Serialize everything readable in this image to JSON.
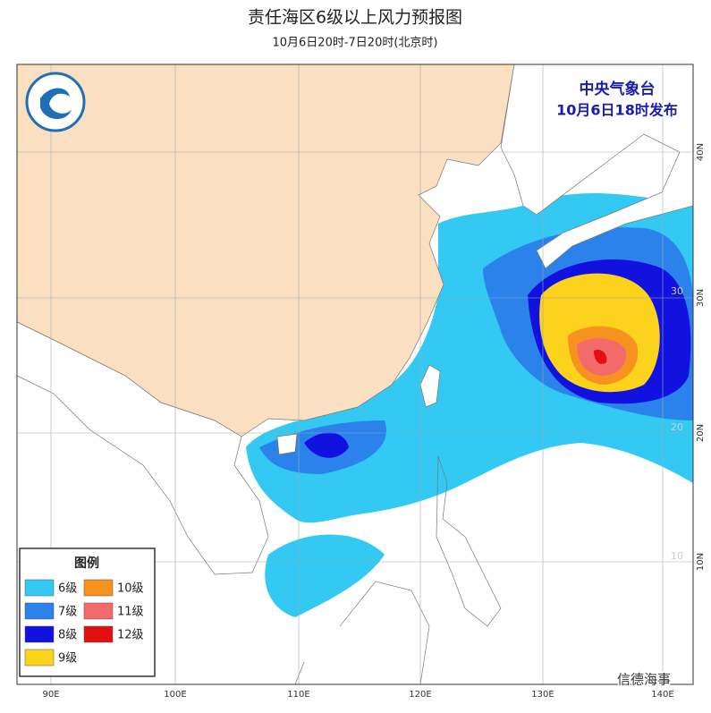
{
  "header": {
    "title": "责任海区6级以上风力预报图",
    "subtitle": "10月6日20时-7日20时(北京时)"
  },
  "issuer": {
    "agency": "中央气象台",
    "issued": "10月6日18时发布"
  },
  "legend": {
    "title": "图例",
    "items": [
      {
        "label": "6级",
        "color": "#33c9f2"
      },
      {
        "label": "7级",
        "color": "#2b82ea"
      },
      {
        "label": "8级",
        "color": "#1212e0"
      },
      {
        "label": "9级",
        "color": "#fbd21c"
      },
      {
        "label": "10级",
        "color": "#f7921e"
      },
      {
        "label": "11级",
        "color": "#f26a6a"
      },
      {
        "label": "12级",
        "color": "#e21010"
      }
    ]
  },
  "lon_labels": [
    "90E",
    "100E",
    "110E",
    "120E",
    "130E",
    "140E"
  ],
  "lat_labels": [
    "40N",
    "30N",
    "20N",
    "10N"
  ],
  "grid_labels": [
    "30",
    "20",
    "10"
  ],
  "watermark": "信德海事"
}
